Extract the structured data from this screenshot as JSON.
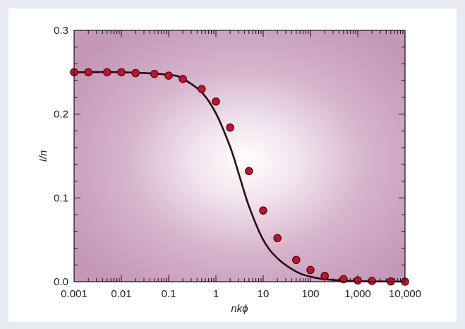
{
  "chart_data": {
    "type": "scatter",
    "title": "",
    "xlabel": "nkϕ",
    "ylabel": "I/n",
    "xscale": "log",
    "xlim": [
      0.001,
      10000
    ],
    "ylim": [
      0,
      0.3
    ],
    "x_ticks": [
      0.001,
      0.01,
      0.1,
      1,
      10,
      100,
      1000,
      10000
    ],
    "x_tick_labels": [
      "0.001",
      "0.01",
      "0.1",
      "1",
      "10",
      "100",
      "1,000",
      "10,000"
    ],
    "y_ticks": [
      0,
      0.1,
      0.2,
      0.3
    ],
    "y_tick_labels": [
      "0.0",
      "0.1",
      "0.2",
      "0.3"
    ],
    "grid": false,
    "plot_background": "radial gradient: white center to #c79cbb",
    "series": [
      {
        "kind": "points",
        "color": "#c8102e",
        "x": [
          0.001,
          0.002,
          0.005,
          0.01,
          0.02,
          0.05,
          0.1,
          0.2,
          0.5,
          1,
          2,
          5,
          10,
          20,
          50,
          100,
          200,
          500,
          1000,
          2000,
          5000,
          10000
        ],
        "y": [
          0.25,
          0.25,
          0.25,
          0.25,
          0.249,
          0.248,
          0.246,
          0.242,
          0.23,
          0.215,
          0.184,
          0.132,
          0.085,
          0.052,
          0.026,
          0.014,
          0.007,
          0.003,
          0.0015,
          0.0008,
          0.0003,
          0.0001
        ]
      },
      {
        "kind": "curve",
        "color": "#2a0a12",
        "x": [
          0.001,
          0.01,
          0.1,
          0.2,
          0.5,
          1,
          2,
          3,
          5,
          10,
          20,
          50,
          100,
          200,
          500,
          1000,
          10000
        ],
        "y": [
          0.25,
          0.25,
          0.247,
          0.242,
          0.226,
          0.201,
          0.161,
          0.13,
          0.09,
          0.05,
          0.028,
          0.012,
          0.006,
          0.003,
          0.0013,
          0.0006,
          0.0001
        ]
      }
    ]
  }
}
